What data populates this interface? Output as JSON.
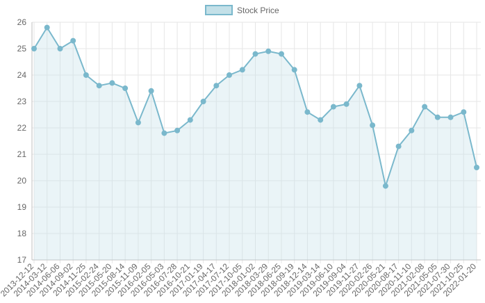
{
  "chart_data": {
    "type": "line",
    "title": "",
    "xlabel": "",
    "ylabel": "",
    "ylim": [
      17,
      26
    ],
    "yticks": [
      17,
      18,
      19,
      20,
      21,
      22,
      23,
      24,
      25,
      26
    ],
    "grid": true,
    "legend_position": "top",
    "series": [
      {
        "name": "Stock Price",
        "color": "#7ab8cc",
        "fill": "#c3e0e8",
        "x": [
          "2013-12-12",
          "2014-03-12",
          "2014-06-06",
          "2014-09-02",
          "2014-11-25",
          "2015-02-24",
          "2015-05-20",
          "2015-08-14",
          "2015-11-09",
          "2016-02-05",
          "2016-05-03",
          "2016-07-28",
          "2016-10-21",
          "2017-01-19",
          "2017-04-17",
          "2017-07-12",
          "2017-10-05",
          "2018-01-02",
          "2018-03-29",
          "2018-06-25",
          "2018-09-19",
          "2018-12-14",
          "2019-03-14",
          "2019-06-10",
          "2019-09-04",
          "2019-11-27",
          "2020-02-26",
          "2020-05-21",
          "2020-08-17",
          "2020-11-10",
          "2021-02-08",
          "2021-05-05",
          "2021-07-30",
          "2021-10-25",
          "2022-01-20"
        ],
        "values": [
          25.0,
          25.8,
          25.0,
          25.3,
          24.0,
          23.6,
          23.7,
          23.5,
          22.2,
          23.4,
          21.8,
          21.9,
          22.3,
          23.0,
          23.6,
          24.0,
          24.2,
          24.8,
          24.9,
          24.8,
          24.2,
          22.6,
          22.3,
          22.8,
          22.9,
          23.6,
          22.1,
          19.8,
          21.3,
          21.9,
          22.8,
          22.4,
          22.4,
          22.6,
          20.5
        ]
      }
    ],
    "x_tick_labels": [
      "2013-12-12",
      "2014-03-12",
      "2014-06-06",
      "2014-09-02",
      "2014-11-25",
      "2015-02-24",
      "2015-05-20",
      "2015-08-14",
      "2015-11-09",
      "2016-02-05",
      "2016-05-03",
      "2016-07-28",
      "2016-10-21",
      "2017-01-19",
      "2017-04-17",
      "2017-07-12",
      "2017-10-05",
      "2018-01-02",
      "2018-03-29",
      "2018-06-25",
      "2018-09-19",
      "2018-12-14",
      "2019-03-14",
      "2019-06-10",
      "2019-09-04",
      "2019-11-27",
      "2020-02-26",
      "2020-05-21",
      "2020-08-17",
      "2020-11-10",
      "2021-02-08",
      "2021-05-05",
      "2021-07-30",
      "2021-10-25",
      "2022-01-20"
    ]
  }
}
